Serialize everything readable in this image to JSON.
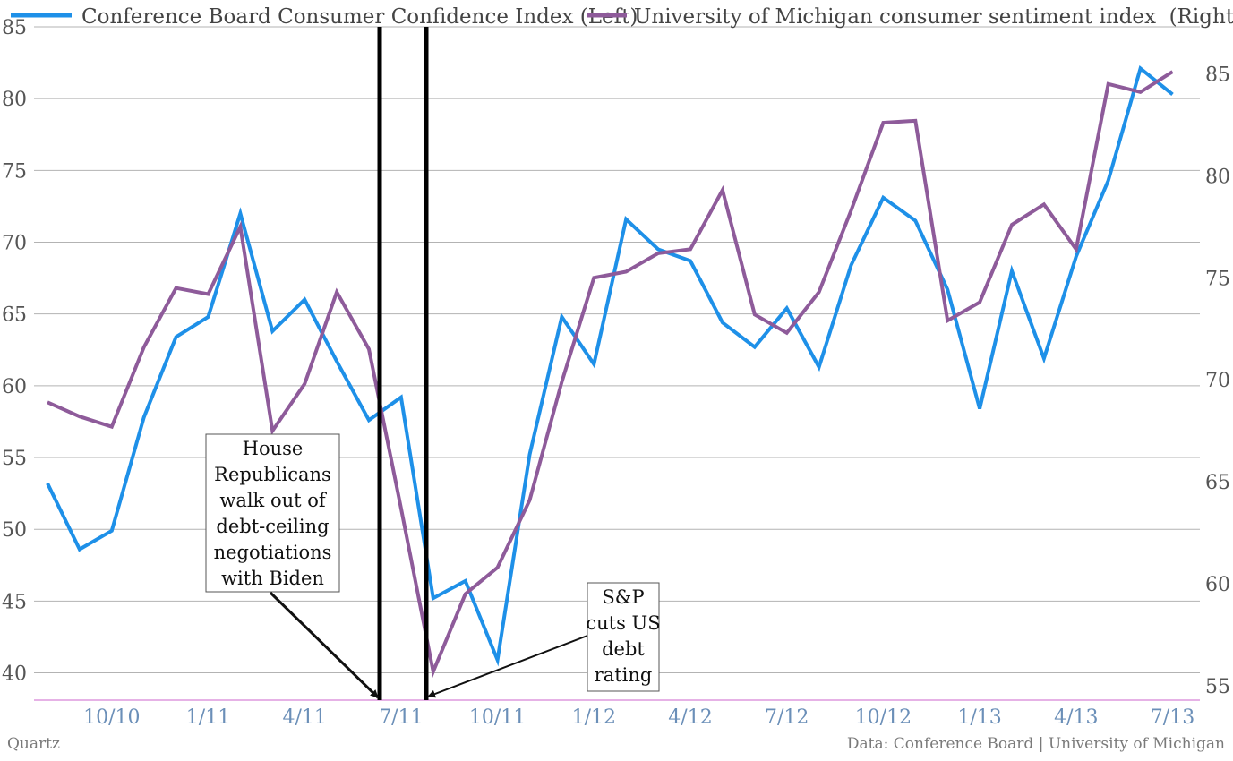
{
  "chart_data": {
    "type": "line",
    "x": [
      "8/10",
      "9/10",
      "10/10",
      "11/10",
      "12/10",
      "1/11",
      "2/11",
      "3/11",
      "4/11",
      "5/11",
      "6/11",
      "7/11",
      "8/11",
      "9/11",
      "10/11",
      "11/11",
      "12/11",
      "1/12",
      "2/12",
      "3/12",
      "4/12",
      "5/12",
      "6/12",
      "7/12",
      "8/12",
      "9/12",
      "10/12",
      "11/12",
      "12/12",
      "1/13",
      "2/13",
      "3/13",
      "4/13",
      "5/13",
      "6/13",
      "7/13"
    ],
    "x_tick_labels": [
      "10/10",
      "1/11",
      "4/11",
      "7/11",
      "10/11",
      "1/12",
      "4/12",
      "7/12",
      "10/12",
      "1/13",
      "4/13",
      "7/13"
    ],
    "series": [
      {
        "name": "Conference Board Consumer Confidence Index (Left)",
        "axis": "left",
        "color": "#1e90e8",
        "values": [
          53.2,
          48.6,
          49.9,
          57.8,
          63.4,
          64.8,
          72.0,
          63.8,
          66.0,
          61.7,
          57.6,
          59.2,
          45.2,
          46.4,
          40.9,
          55.2,
          64.8,
          61.5,
          71.6,
          69.5,
          68.7,
          64.4,
          62.7,
          65.4,
          61.3,
          68.4,
          73.1,
          71.5,
          66.7,
          58.4,
          68.0,
          61.9,
          69.0,
          74.3,
          82.1,
          80.3
        ]
      },
      {
        "name": "University of Michigan consumer sentiment index  (Right)",
        "axis": "right",
        "color": "#8e5b9a",
        "values": [
          68.9,
          68.2,
          67.7,
          71.6,
          74.5,
          74.2,
          77.5,
          67.5,
          69.8,
          74.3,
          71.5,
          63.7,
          55.7,
          59.5,
          60.8,
          64.1,
          69.9,
          75.0,
          75.3,
          76.2,
          76.4,
          79.3,
          73.2,
          72.3,
          74.3,
          78.3,
          82.6,
          82.7,
          72.9,
          73.8,
          77.6,
          78.6,
          76.4,
          84.5,
          84.1,
          85.1
        ]
      }
    ],
    "y_left": {
      "range": [
        38.1,
        85
      ],
      "ticks": [
        "40",
        "45",
        "50",
        "55",
        "60",
        "65",
        "70",
        "75",
        "80",
        "85"
      ]
    },
    "y_right": {
      "range": [
        54.3,
        87.3
      ],
      "ticks": [
        "55",
        "60",
        "65",
        "70",
        "75",
        "80",
        "85"
      ]
    },
    "grid": true,
    "legend_placement": "top",
    "event_markers": [
      "7/11",
      "8/11"
    ],
    "annotations": [
      {
        "lines": [
          "House",
          "Republicans",
          "walk out of",
          "debt-ceiling",
          "negotiations",
          "with Biden"
        ],
        "points_to": "7/11"
      },
      {
        "lines": [
          "S&P",
          "cuts US",
          "debt",
          "rating"
        ],
        "points_to": "8/11"
      }
    ]
  },
  "footer": {
    "source_left": "Quartz",
    "source_right": "Data: Conference Board | University of Michigan"
  }
}
